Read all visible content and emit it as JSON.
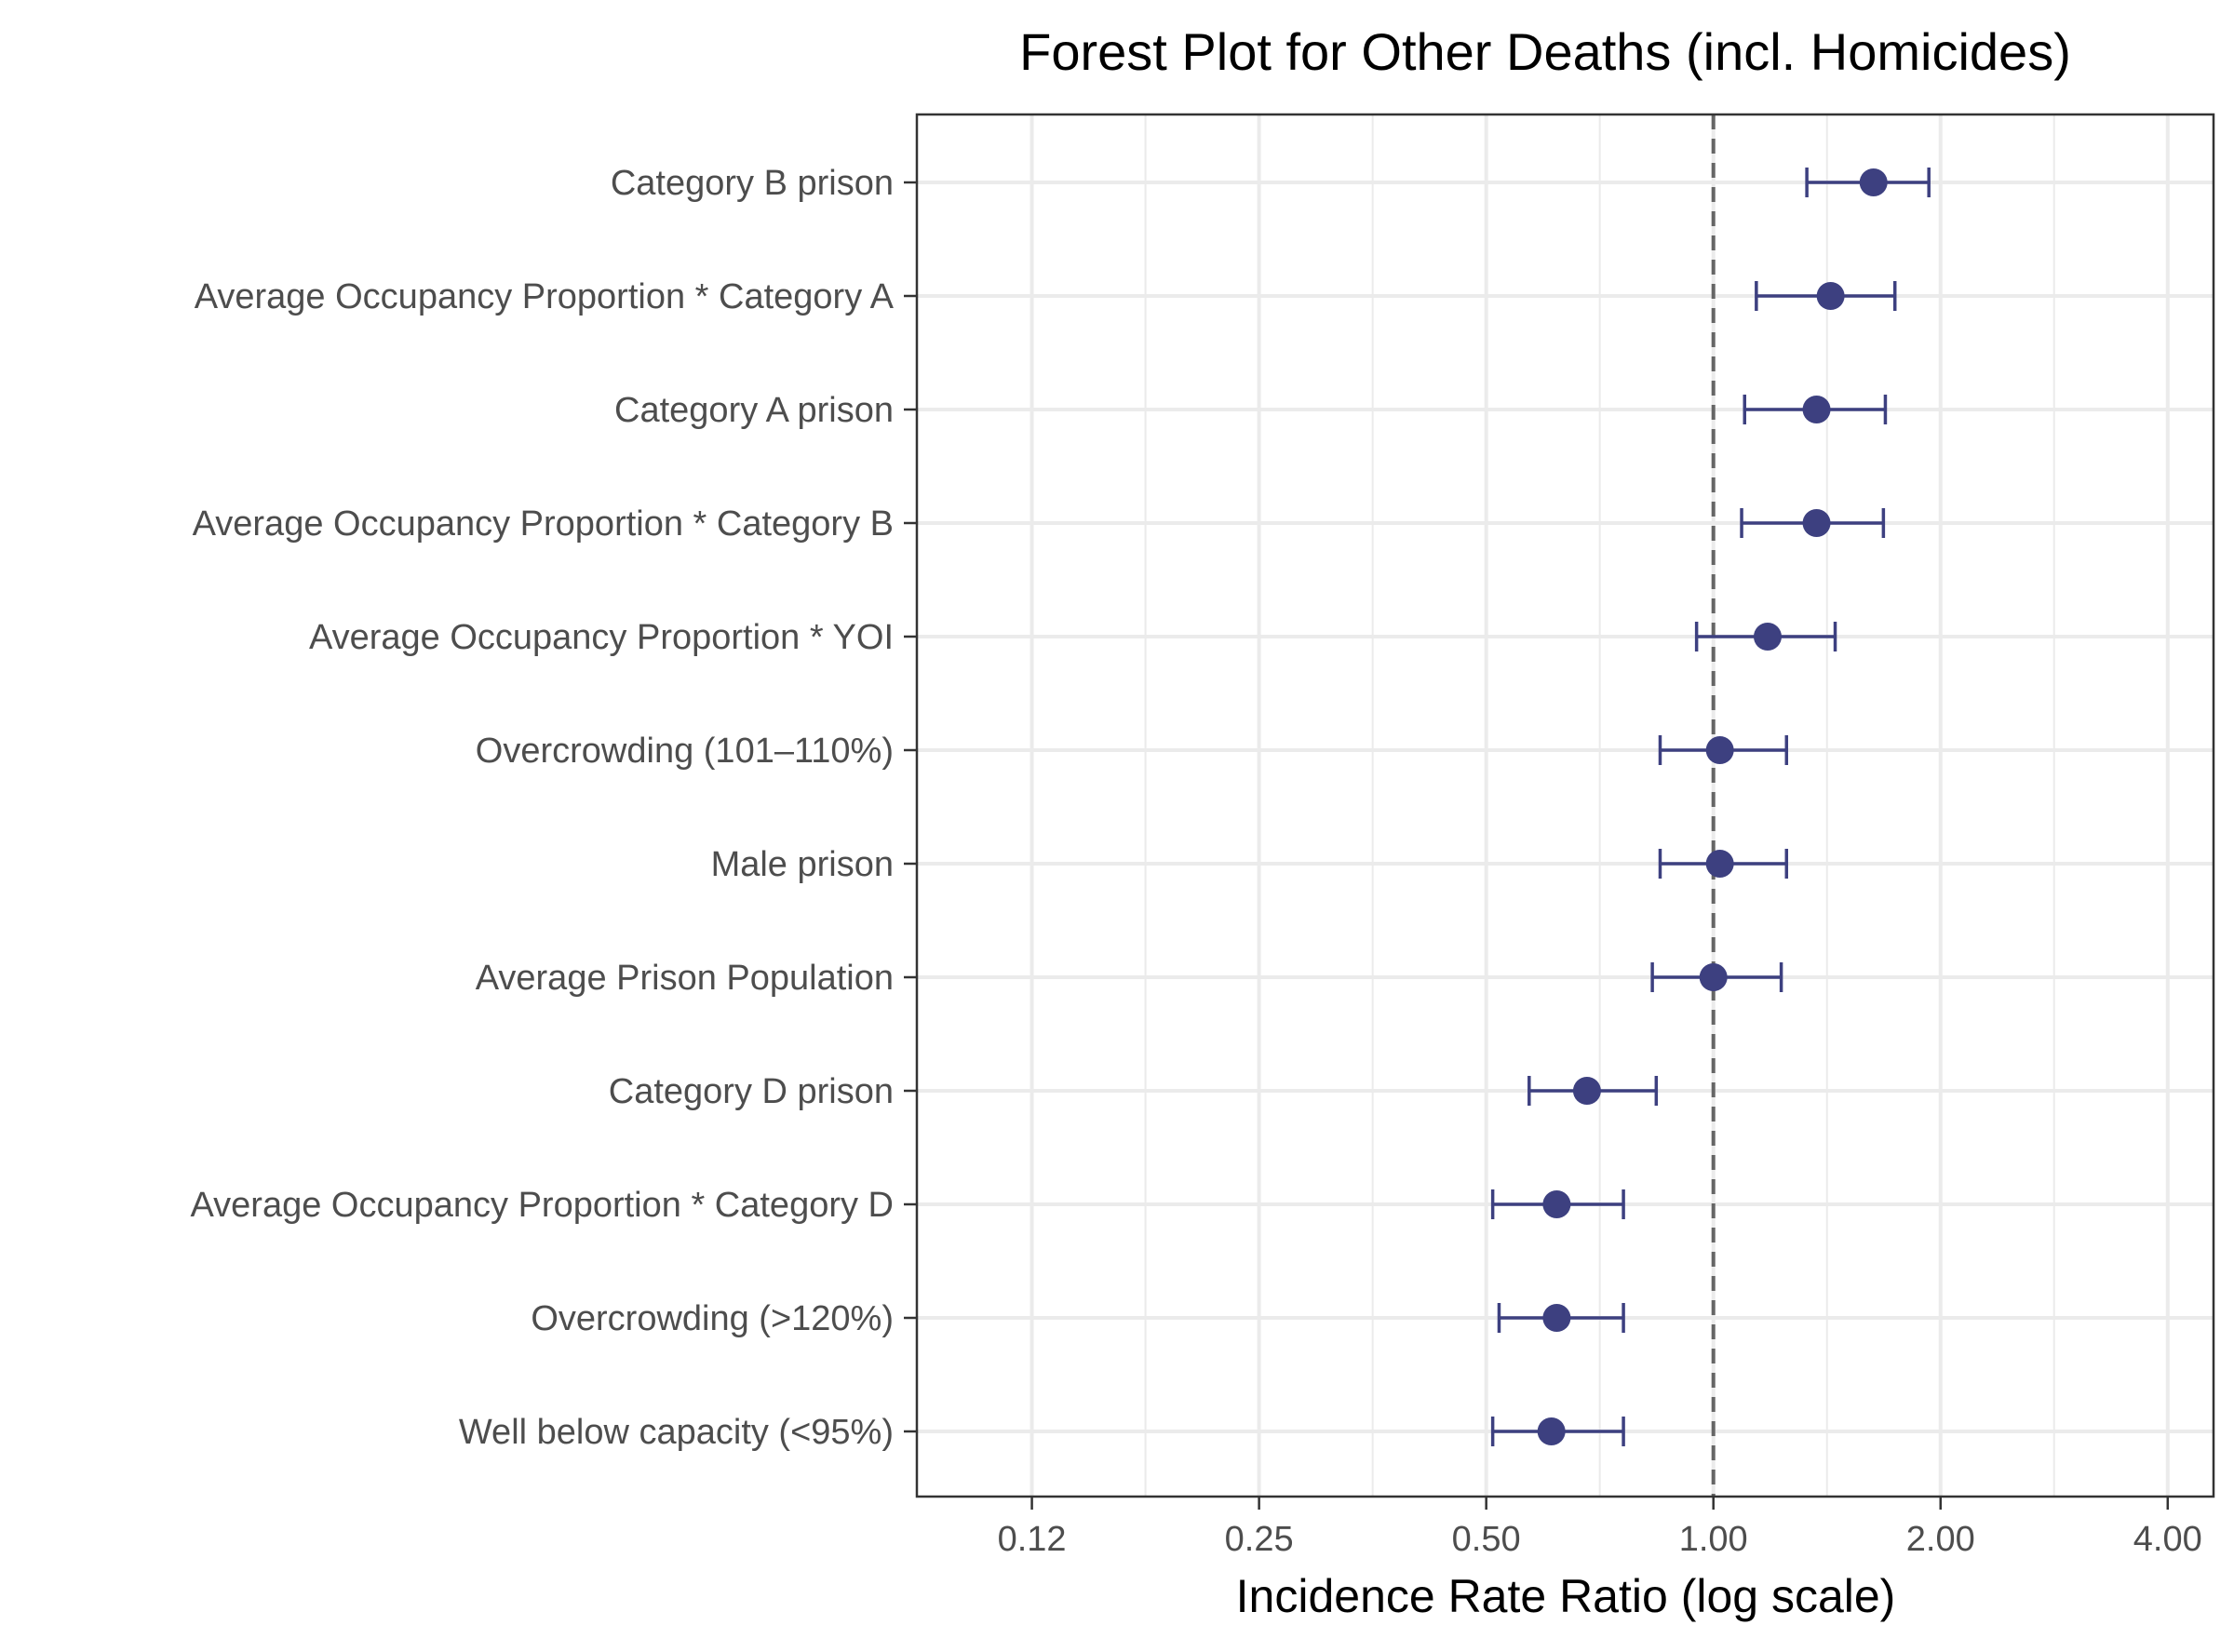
{
  "chart_data": {
    "type": "scatter",
    "subtype": "forest-plot",
    "title": "Forest Plot for Other Deaths (incl. Homicides)",
    "xlabel": "Incidence Rate Ratio (log scale)",
    "ylabel": "",
    "x_scale": "log2",
    "xlim": [
      0.088,
      4.6
    ],
    "x_ticks": [
      0.125,
      0.25,
      0.5,
      1.0,
      2.0,
      4.0
    ],
    "x_tick_labels": [
      "0.12",
      "0.25",
      "0.50",
      "1.00",
      "2.00",
      "4.00"
    ],
    "reference_line": 1.0,
    "grid": true,
    "legend": "none",
    "colors": {
      "point": "#3d4080",
      "errorbar": "#3d4080",
      "reference_line": "#666666",
      "grid": "#ebebeb",
      "panel_border": "#333333"
    },
    "rows": [
      {
        "label": "Category B prison",
        "estimate": 1.63,
        "lower": 1.33,
        "upper": 1.93
      },
      {
        "label": "Average Occupancy Proportion * Category A",
        "estimate": 1.43,
        "lower": 1.14,
        "upper": 1.74
      },
      {
        "label": "Category A prison",
        "estimate": 1.37,
        "lower": 1.1,
        "upper": 1.69
      },
      {
        "label": "Average Occupancy Proportion * Category B",
        "estimate": 1.37,
        "lower": 1.09,
        "upper": 1.68
      },
      {
        "label": "Average Occupancy Proportion * YOI",
        "estimate": 1.18,
        "lower": 0.95,
        "upper": 1.45
      },
      {
        "label": "Overcrowding (101–110%)",
        "estimate": 1.02,
        "lower": 0.85,
        "upper": 1.25
      },
      {
        "label": "Male prison",
        "estimate": 1.02,
        "lower": 0.85,
        "upper": 1.25
      },
      {
        "label": "Average Prison Population",
        "estimate": 1.0,
        "lower": 0.83,
        "upper": 1.23
      },
      {
        "label": "Category D prison",
        "estimate": 0.68,
        "lower": 0.57,
        "upper": 0.84
      },
      {
        "label": "Average Occupancy Proportion * Category D",
        "estimate": 0.62,
        "lower": 0.51,
        "upper": 0.76
      },
      {
        "label": "Overcrowding (>120%)",
        "estimate": 0.62,
        "lower": 0.52,
        "upper": 0.76
      },
      {
        "label": "Well below capacity (<95%)",
        "estimate": 0.61,
        "lower": 0.51,
        "upper": 0.76
      }
    ]
  }
}
